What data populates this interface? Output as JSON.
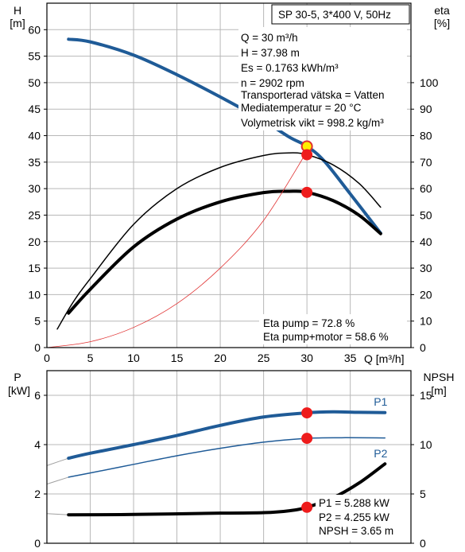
{
  "chart_data": [
    {
      "type": "line",
      "title": "SP 30-5, 3*400 V, 50Hz",
      "left_axis": {
        "label": "H",
        "unit": "[m]",
        "range": [
          0,
          65
        ],
        "ticks": [
          0,
          5,
          10,
          15,
          20,
          25,
          30,
          35,
          40,
          45,
          50,
          55,
          60
        ]
      },
      "right_axis": {
        "label": "eta",
        "unit": "[%]",
        "range": [
          0,
          130
        ],
        "ticks": [
          0,
          10,
          20,
          30,
          40,
          50,
          60,
          70,
          80,
          90,
          100
        ]
      },
      "x_axis": {
        "label": "Q [m³/h]",
        "range": [
          0,
          42
        ],
        "ticks": [
          0,
          5,
          10,
          15,
          20,
          25,
          30,
          35
        ]
      },
      "grid": true,
      "series": [
        {
          "name": "",
          "axis": "left",
          "color": "#1f5b97",
          "width": 4,
          "points": [
            [
              2.5,
              58.2
            ],
            [
              5,
              57.7
            ],
            [
              10,
              55.2
            ],
            [
              15,
              51.5
            ],
            [
              20,
              47.3
            ],
            [
              25,
              42.8
            ],
            [
              28,
              39.7
            ],
            [
              30,
              38.0
            ],
            [
              32,
              35.2
            ],
            [
              35,
              29.0
            ],
            [
              38.5,
              21.6
            ]
          ]
        },
        {
          "name": "",
          "axis": "right",
          "color": "#000000",
          "width": 1.5,
          "points": [
            [
              1.2,
              7
            ],
            [
              3,
              17
            ],
            [
              5,
              26
            ],
            [
              10,
              46.5
            ],
            [
              15,
              60
            ],
            [
              20,
              68
            ],
            [
              25,
              72.5
            ],
            [
              28,
              73.5
            ],
            [
              30,
              72.8
            ],
            [
              33,
              69
            ],
            [
              36,
              62
            ],
            [
              38.5,
              53
            ]
          ]
        },
        {
          "name": "",
          "axis": "right",
          "color": "#000000",
          "width": 4,
          "points": [
            [
              2.5,
              13
            ],
            [
              5,
              22
            ],
            [
              10,
              38
            ],
            [
              15,
              48.5
            ],
            [
              20,
              55
            ],
            [
              25,
              58.5
            ],
            [
              28,
              59
            ],
            [
              30,
              58.6
            ],
            [
              33,
              55.5
            ],
            [
              36,
              50
            ],
            [
              38.5,
              43
            ]
          ]
        },
        {
          "name": "",
          "axis": "left",
          "color": "#e03030",
          "width": 0.8,
          "points": [
            [
              0,
              0
            ],
            [
              5,
              1.1
            ],
            [
              10,
              3.8
            ],
            [
              15,
              8.3
            ],
            [
              20,
              15.0
            ],
            [
              25,
              24.0
            ],
            [
              30,
              37.0
            ]
          ]
        }
      ],
      "markers": [
        {
          "x": 30,
          "value": 37.98,
          "axis": "left",
          "fill": "#ffee00",
          "stroke": "#e03030"
        },
        {
          "x": 30,
          "value": 72.8,
          "axis": "right",
          "fill": "#ee1c1c"
        },
        {
          "x": 30,
          "value": 58.6,
          "axis": "right",
          "fill": "#ee1c1c"
        }
      ],
      "info_lines": [
        "Q = 30 m³/h",
        "H = 37.98 m",
        "Es = 0.1763 kWh/m³",
        "n = 2902 rpm",
        "Transporterad vätska = Vatten",
        "Mediatemperatur = 20 °C",
        "Volymetrisk vikt = 998.2 kg/m³"
      ],
      "eta_lines": [
        "Eta pump = 72.8 %",
        "Eta pump+motor = 58.6 %"
      ]
    },
    {
      "type": "line",
      "left_axis": {
        "label": "P",
        "unit": "[kW]",
        "range": [
          0,
          7
        ],
        "ticks": [
          0,
          2,
          4,
          6
        ]
      },
      "right_axis": {
        "label": "NPSH",
        "unit": "[m]",
        "range": [
          0,
          17.5
        ],
        "ticks": [
          0,
          5,
          10,
          15
        ]
      },
      "x_axis": {
        "range": [
          0,
          42
        ]
      },
      "grid": true,
      "series": [
        {
          "name": "P1",
          "axis": "left",
          "color": "#1f5b97",
          "width": 4,
          "label_at": [
            38.5,
            5.58
          ],
          "ghost": [
            [
              0,
              3.15
            ],
            [
              2.5,
              3.45
            ]
          ],
          "points": [
            [
              2.5,
              3.45
            ],
            [
              5,
              3.65
            ],
            [
              10,
              4.0
            ],
            [
              15,
              4.37
            ],
            [
              20,
              4.78
            ],
            [
              25,
              5.12
            ],
            [
              30,
              5.288
            ],
            [
              33,
              5.33
            ],
            [
              36,
              5.31
            ],
            [
              39,
              5.3
            ]
          ]
        },
        {
          "name": "P2",
          "axis": "left",
          "color": "#1f5b97",
          "width": 1.5,
          "label_at": [
            38.5,
            3.48
          ],
          "ghost": [
            [
              0,
              2.4
            ],
            [
              2.5,
              2.68
            ]
          ],
          "points": [
            [
              2.5,
              2.68
            ],
            [
              5,
              2.85
            ],
            [
              10,
              3.2
            ],
            [
              15,
              3.55
            ],
            [
              20,
              3.85
            ],
            [
              25,
              4.1
            ],
            [
              30,
              4.255
            ],
            [
              34,
              4.28
            ],
            [
              39,
              4.27
            ]
          ]
        },
        {
          "name": "",
          "axis": "right",
          "color": "#000000",
          "width": 4,
          "ghost": [
            [
              0,
              3.0
            ],
            [
              2.5,
              2.88
            ]
          ],
          "points": [
            [
              2.5,
              2.88
            ],
            [
              10,
              2.92
            ],
            [
              20,
              3.05
            ],
            [
              25,
              3.1
            ],
            [
              28,
              3.3
            ],
            [
              30,
              3.65
            ],
            [
              33,
              4.6
            ],
            [
              36,
              6.1
            ],
            [
              39,
              8.05
            ]
          ]
        }
      ],
      "markers": [
        {
          "x": 30,
          "value": 5.288,
          "axis": "left",
          "fill": "#ee1c1c"
        },
        {
          "x": 30,
          "value": 4.255,
          "axis": "left",
          "fill": "#ee1c1c"
        },
        {
          "x": 30,
          "value": 3.65,
          "axis": "right",
          "fill": "#ee1c1c"
        }
      ],
      "info_lines": [
        "P1 = 5.288 kW",
        "P2 = 4.255 kW",
        "NPSH = 3.65 m"
      ]
    }
  ]
}
